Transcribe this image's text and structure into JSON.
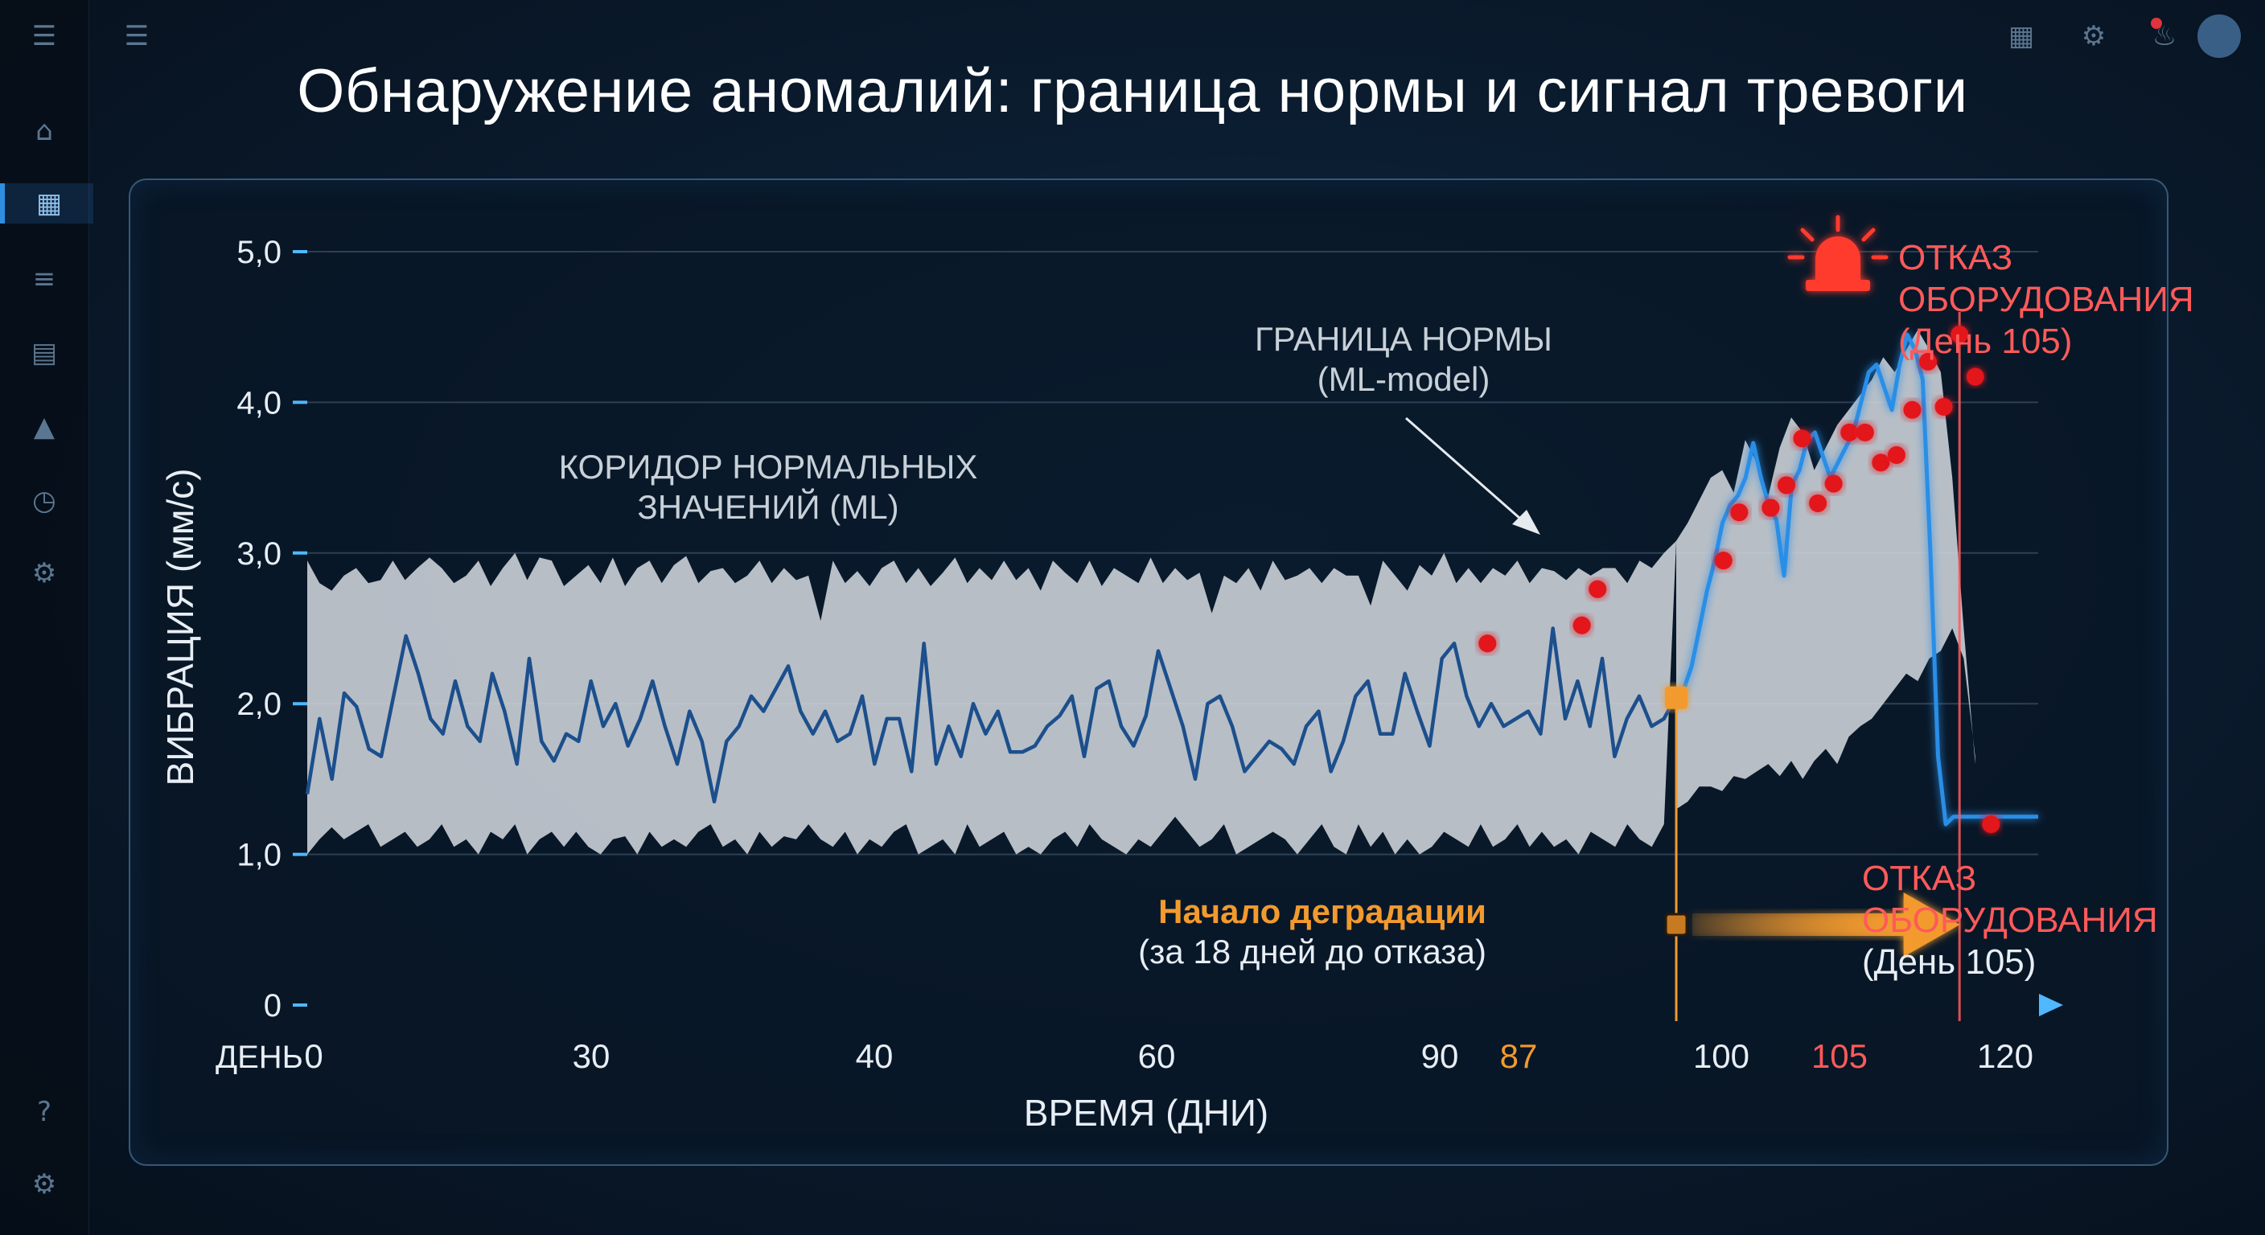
{
  "title": "Обнаружение аномалий: граница нормы и сигнал тревоги",
  "chart_data": {
    "type": "line",
    "title": "Обнаружение аномалий: граница нормы и сигнал тревоги",
    "xlabel": "ВРЕМЯ (ДНИ)",
    "ylabel": "ВИБРАЦИЯ (мм/с)",
    "x_prefix": "ДЕНЬ",
    "x_ticks": [
      "0",
      "30",
      "40",
      "60",
      "90",
      "87",
      "100",
      "105",
      "120"
    ],
    "y_ticks": [
      "5,0",
      "4,0",
      "3,0",
      "2,0",
      "1,0",
      "0"
    ],
    "ylim": [
      0,
      5
    ],
    "grid": true,
    "series": [
      {
        "values": [
          1.4,
          1.9,
          1.5,
          2.07,
          1.98,
          1.7,
          1.65,
          2.05,
          2.45,
          2.2,
          1.9,
          1.8,
          2.15,
          1.85,
          1.75,
          2.2,
          1.95,
          1.6,
          2.3,
          1.75,
          1.62,
          1.8,
          1.75,
          2.15,
          1.85,
          2.0,
          1.72,
          1.9,
          2.15,
          1.85,
          1.6,
          1.95,
          1.75,
          1.35,
          1.75,
          1.85,
          2.05,
          1.95,
          2.1,
          2.25,
          1.95,
          1.8,
          1.95,
          1.75,
          1.8,
          2.05,
          1.6,
          1.9,
          1.9,
          1.55,
          2.4,
          1.6,
          1.85,
          1.65,
          2.0,
          1.8,
          1.95,
          1.68,
          1.68,
          1.72,
          1.85,
          1.92,
          2.05,
          1.65,
          2.1,
          2.15,
          1.85,
          1.72,
          1.92,
          2.35,
          2.1,
          1.85,
          1.5,
          2.0,
          2.05,
          1.85,
          1.55,
          1.65,
          1.75,
          1.7,
          1.6,
          1.85,
          1.95,
          1.55,
          1.75,
          2.05,
          2.15,
          1.8,
          1.8,
          2.2,
          1.95,
          1.72,
          2.3,
          2.4,
          2.05,
          1.85,
          2.0,
          1.85,
          1.9,
          1.95,
          1.8,
          2.5,
          1.9,
          2.15,
          1.85,
          2.3,
          1.65,
          1.9,
          2.05,
          1.85,
          1.9,
          2.05
        ]
      },
      {
        "values": [
          2.04,
          2.1,
          2.25,
          2.5,
          2.75,
          2.95,
          3.2,
          3.32,
          3.38,
          3.5,
          3.73,
          3.5,
          3.32,
          3.22,
          2.85,
          3.45,
          3.55,
          3.75,
          3.8,
          3.65,
          3.5,
          3.6,
          3.7,
          3.8,
          4.0,
          4.2,
          4.25,
          4.1,
          3.95,
          4.25,
          4.45,
          4.35,
          4.15,
          3.0,
          1.65,
          1.2,
          1.25,
          1.25,
          1.25,
          1.25,
          1.25,
          1.25,
          1.25,
          1.25,
          1.25,
          1.25,
          1.25,
          1.25
        ]
      }
    ],
    "band_upper": [
      2.95,
      2.8,
      2.75,
      2.85,
      2.9,
      2.8,
      2.82,
      2.95,
      2.82,
      2.9,
      2.97,
      2.9,
      2.8,
      2.85,
      2.95,
      2.78,
      2.9,
      3.0,
      2.82,
      2.97,
      2.95,
      2.78,
      2.85,
      2.92,
      2.8,
      2.97,
      2.78,
      2.9,
      2.95,
      2.8,
      2.92,
      2.98,
      2.8,
      2.88,
      2.9,
      2.8,
      2.85,
      2.95,
      2.8,
      2.9,
      2.82,
      2.85,
      2.55,
      2.95,
      2.8,
      2.88,
      2.78,
      2.9,
      2.95,
      2.8,
      2.9,
      2.78,
      2.87,
      2.97,
      2.8,
      2.9,
      2.82,
      2.95,
      2.82,
      2.9,
      2.75,
      2.95,
      2.87,
      2.8,
      2.95,
      2.78,
      2.9,
      2.85,
      2.8,
      2.97,
      2.8,
      2.9,
      2.82,
      2.87,
      2.6,
      2.85,
      2.8,
      2.9,
      2.75,
      2.95,
      2.82,
      2.85,
      2.9,
      2.8,
      2.9,
      2.85,
      2.85,
      2.65,
      2.95,
      2.85,
      2.75,
      2.92,
      2.85,
      3.0,
      2.8,
      2.9,
      2.8,
      2.9,
      2.85,
      2.95,
      2.8,
      2.9,
      2.88,
      2.82,
      2.9,
      2.85,
      2.9,
      2.9,
      2.8,
      2.95,
      2.9,
      3.0,
      3.08
    ],
    "band_lower": [
      1.0,
      1.1,
      1.18,
      1.1,
      1.15,
      1.2,
      1.05,
      1.1,
      1.15,
      1.05,
      1.1,
      1.2,
      1.05,
      1.1,
      1.0,
      1.15,
      1.1,
      1.2,
      1.0,
      1.1,
      1.15,
      1.05,
      1.15,
      1.05,
      1.0,
      1.1,
      1.12,
      1.0,
      1.15,
      1.05,
      1.1,
      1.05,
      1.15,
      1.2,
      1.05,
      1.1,
      1.0,
      1.15,
      1.05,
      1.12,
      1.1,
      1.2,
      1.1,
      1.05,
      1.15,
      1.0,
      1.1,
      1.05,
      1.15,
      1.2,
      1.0,
      1.05,
      1.1,
      1.0,
      1.2,
      1.05,
      1.1,
      1.15,
      1.0,
      1.05,
      1.0,
      1.1,
      1.15,
      1.05,
      1.2,
      1.1,
      1.05,
      1.0,
      1.1,
      1.05,
      1.15,
      1.25,
      1.15,
      1.05,
      1.1,
      1.2,
      1.0,
      1.05,
      1.1,
      1.15,
      1.1,
      1.0,
      1.1,
      1.2,
      1.05,
      1.0,
      1.2,
      1.05,
      1.15,
      1.0,
      1.1,
      1.0,
      1.05,
      1.15,
      1.1,
      1.05,
      1.2,
      1.05,
      1.1,
      1.2,
      1.05,
      1.15,
      1.05,
      1.1,
      1.0,
      1.15,
      1.1,
      1.05,
      1.2,
      1.1,
      1.05,
      1.2
    ],
    "band_upper_2": [
      3.08,
      3.2,
      3.35,
      3.5,
      3.55,
      3.4,
      3.75,
      3.6,
      3.38,
      3.7,
      3.9,
      3.8,
      3.55,
      3.7,
      3.85,
      3.95,
      4.05,
      4.15,
      4.3,
      4.2,
      4.35,
      4.48,
      4.35,
      4.2,
      3.5,
      2.5,
      1.6
    ],
    "band_lower_2": [
      1.3,
      1.35,
      1.45,
      1.45,
      1.42,
      1.52,
      1.5,
      1.55,
      1.6,
      1.52,
      1.62,
      1.5,
      1.62,
      1.7,
      1.6,
      1.78,
      1.85,
      1.9,
      2.0,
      2.1,
      2.2,
      2.15,
      2.3,
      2.35,
      2.5,
      2.3,
      1.65
    ],
    "anomalies": [
      {
        "x": 75,
        "y": 2.4
      },
      {
        "x": 81,
        "y": 2.52
      },
      {
        "x": 82,
        "y": 2.76
      },
      {
        "x": 90,
        "y": 2.95
      },
      {
        "x": 91,
        "y": 3.27
      },
      {
        "x": 93,
        "y": 3.3
      },
      {
        "x": 94,
        "y": 3.45
      },
      {
        "x": 95,
        "y": 3.76
      },
      {
        "x": 96,
        "y": 3.33
      },
      {
        "x": 97,
        "y": 3.46
      },
      {
        "x": 98,
        "y": 3.8
      },
      {
        "x": 99,
        "y": 3.8
      },
      {
        "x": 100,
        "y": 3.6
      },
      {
        "x": 101,
        "y": 3.65
      },
      {
        "x": 102,
        "y": 3.95
      },
      {
        "x": 103,
        "y": 4.27
      },
      {
        "x": 104,
        "y": 3.97
      },
      {
        "x": 105,
        "y": 4.45
      },
      {
        "x": 106,
        "y": 4.17
      },
      {
        "x": 107,
        "y": 1.2
      }
    ],
    "annotations": {
      "corridor": [
        "КОРИДОР НОРМАЛЬНЫХ",
        "ЗНАЧЕНИЙ (ML)"
      ],
      "boundary": [
        "ГРАНИЦА НОРМЫ",
        "(ML-model)"
      ],
      "failure_top": [
        "ОТКАЗ",
        "ОБОРУДОВАНИЯ",
        "(День 105)"
      ],
      "failure_bottom": [
        "ОТКАЗ",
        "ОБОРУДОВАНИЯ",
        "(День 105)"
      ],
      "degradation": [
        "Начало деградации",
        "(за 18 дней до отказа)"
      ]
    },
    "colors": {
      "line": "#1c4f8c",
      "line_anomaly": "#2a8ee6",
      "band": "#cfd5dc",
      "anomaly": "#e3141c",
      "degradation": "#f29a2e",
      "failure": "#ff5a5a",
      "axis": "#4fb8ff"
    }
  }
}
